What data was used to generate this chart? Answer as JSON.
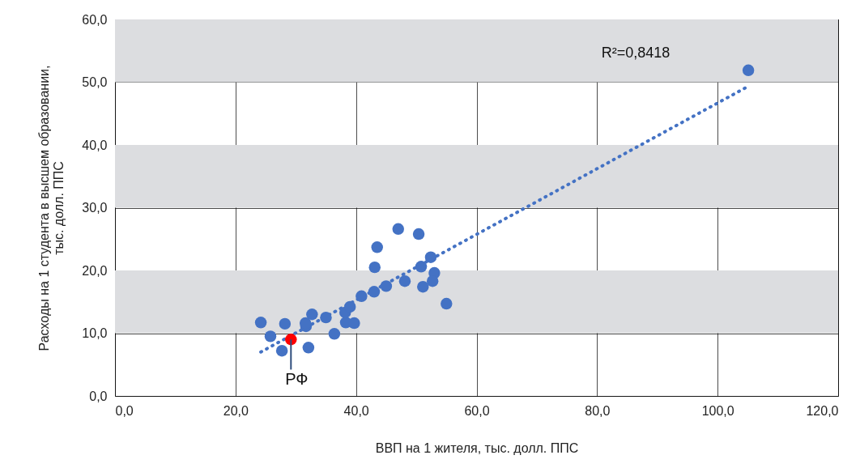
{
  "chart_data": {
    "type": "scatter",
    "xlabel": "ВВП на 1 жителя, тыс. долл. ППС",
    "ylabel": "Расходы на 1 студента в высшем образовании, тыс. долл. ППС",
    "xlim": [
      0,
      120
    ],
    "ylim": [
      0,
      60
    ],
    "xticks": [
      {
        "value": 0,
        "label": "0,0"
      },
      {
        "value": 20,
        "label": "20,0"
      },
      {
        "value": 40,
        "label": "40,0"
      },
      {
        "value": 60,
        "label": "60,0"
      },
      {
        "value": 80,
        "label": "80,0"
      },
      {
        "value": 100,
        "label": "100,0"
      },
      {
        "value": 120,
        "label": "120,0"
      }
    ],
    "yticks": [
      {
        "value": 0,
        "label": "0,0"
      },
      {
        "value": 10,
        "label": "10,0"
      },
      {
        "value": 20,
        "label": "20,0"
      },
      {
        "value": 30,
        "label": "30,0"
      },
      {
        "value": 40,
        "label": "40,0"
      },
      {
        "value": 50,
        "label": "50,0"
      },
      {
        "value": 60,
        "label": "60,0"
      }
    ],
    "grid": true,
    "marker": "circle",
    "bands": [
      {
        "axis": "y",
        "from": 10,
        "to": 20,
        "color": "#dcdde0"
      },
      {
        "axis": "y",
        "from": 30,
        "to": 40,
        "color": "#dcdde0"
      },
      {
        "axis": "y",
        "from": 50,
        "to": 60,
        "color": "#dcdde0"
      }
    ],
    "series": [
      {
        "type": "line",
        "color": "#4472c4",
        "line_style": "dotted",
        "marker": "none",
        "x": [
          24.2,
          105.2
        ],
        "values": [
          7.0,
          49.4
        ]
      },
      {
        "color": "#4472c4",
        "x": [
          24.2,
          25.8,
          27.7,
          28.2,
          32.1,
          31.7,
          31.6,
          32.7,
          35.0,
          36.4,
          38.3,
          39.7,
          38.2,
          39.0,
          40.9,
          43.0,
          45.0,
          43.1,
          43.5,
          47.0,
          50.4,
          48.1,
          50.8,
          52.4,
          53.0,
          52.7,
          51.1,
          55.0,
          105.1
        ],
        "values": [
          11.7,
          9.5,
          7.2,
          11.5,
          7.7,
          11.1,
          11.6,
          13.0,
          12.5,
          9.9,
          11.7,
          11.6,
          13.3,
          14.2,
          15.9,
          16.6,
          17.5,
          20.5,
          23.7,
          26.6,
          25.8,
          18.3,
          20.6,
          22.1,
          19.6,
          18.3,
          17.4,
          14.7,
          51.9
        ]
      },
      {
        "color": "#ff0000",
        "x": [
          29.2
        ],
        "values": [
          9.0
        ]
      }
    ],
    "annotations": [
      {
        "text": "РФ",
        "x": 29.2,
        "y": 9.0
      },
      "R²=0,8418"
    ]
  }
}
